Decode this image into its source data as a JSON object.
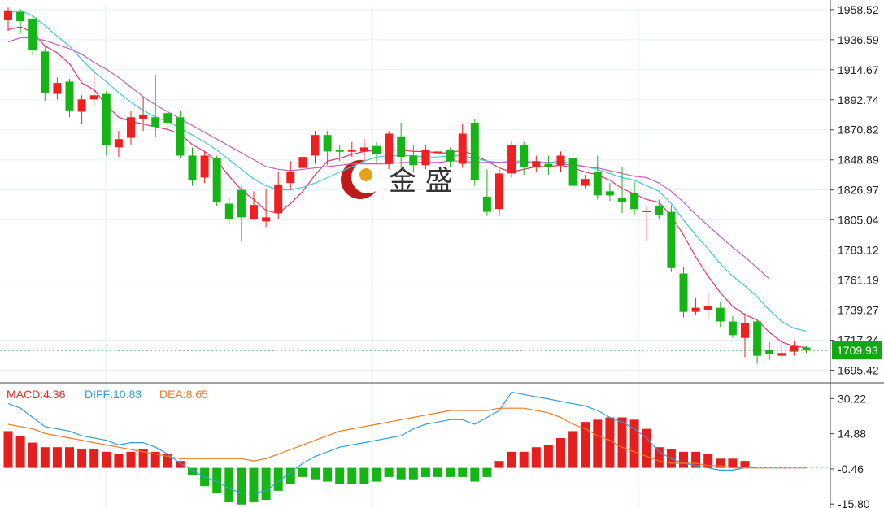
{
  "watermark": {
    "text": "金 盛"
  },
  "chart_data": [
    {
      "type": "candlestick",
      "title": "",
      "x_count": 66,
      "ylim": [
        1688,
        1962
      ],
      "y_ticks": [
        "1958.52",
        "1936.59",
        "1914.67",
        "1892.74",
        "1870.82",
        "1848.89",
        "1826.97",
        "1805.04",
        "1783.12",
        "1761.19",
        "1739.27",
        "1717.34",
        "1695.42"
      ],
      "last_price": {
        "label": "1709.93",
        "value": 1709.93
      },
      "up_color": "#f02020",
      "down_color": "#16b516",
      "candles": [
        [
          1951,
          1958,
          1943,
          1960
        ],
        [
          1957,
          1950,
          1941,
          1959
        ],
        [
          1952,
          1929,
          1925,
          1955
        ],
        [
          1928,
          1898,
          1892,
          1932
        ],
        [
          1897,
          1905,
          1893,
          1909
        ],
        [
          1906,
          1885,
          1880,
          1908
        ],
        [
          1884,
          1893,
          1875,
          1896
        ],
        [
          1893,
          1896,
          1888,
          1915
        ],
        [
          1897,
          1860,
          1852,
          1899
        ],
        [
          1858,
          1864,
          1851,
          1870
        ],
        [
          1865,
          1880,
          1860,
          1885
        ],
        [
          1879,
          1882,
          1870,
          1895
        ],
        [
          1880,
          1873,
          1866,
          1911
        ],
        [
          1883,
          1876,
          1870,
          1884
        ],
        [
          1880,
          1852,
          1850,
          1885
        ],
        [
          1852,
          1834,
          1830,
          1858
        ],
        [
          1836,
          1852,
          1832,
          1855
        ],
        [
          1850,
          1818,
          1815,
          1852
        ],
        [
          1817,
          1806,
          1802,
          1821
        ],
        [
          1827,
          1807,
          1790,
          1830
        ],
        [
          1806,
          1816,
          1805,
          1826
        ],
        [
          1804,
          1807,
          1800,
          1828
        ],
        [
          1810,
          1831,
          1806,
          1840
        ],
        [
          1832,
          1840,
          1828,
          1848
        ],
        [
          1843,
          1851,
          1838,
          1856
        ],
        [
          1852,
          1867,
          1846,
          1870
        ],
        [
          1867,
          1855,
          1845,
          1870
        ],
        [
          1856,
          1855,
          1848,
          1860
        ],
        [
          1855,
          1856,
          1851,
          1862
        ],
        [
          1855,
          1858,
          1848,
          1864
        ],
        [
          1859,
          1853,
          1847,
          1862
        ],
        [
          1846,
          1868,
          1842,
          1870
        ],
        [
          1866,
          1851,
          1843,
          1876
        ],
        [
          1852,
          1845,
          1840,
          1860
        ],
        [
          1845,
          1856,
          1842,
          1860
        ],
        [
          1855,
          1855,
          1850,
          1860
        ],
        [
          1856,
          1848,
          1844,
          1858
        ],
        [
          1846,
          1868,
          1843,
          1875
        ],
        [
          1876,
          1834,
          1830,
          1879
        ],
        [
          1822,
          1811,
          1808,
          1842
        ],
        [
          1813,
          1839,
          1808,
          1842
        ],
        [
          1839,
          1860,
          1836,
          1863
        ],
        [
          1860,
          1844,
          1838,
          1862
        ],
        [
          1844,
          1848,
          1840,
          1852
        ],
        [
          1846,
          1844,
          1838,
          1852
        ],
        [
          1845,
          1852,
          1840,
          1855
        ],
        [
          1850,
          1830,
          1827,
          1855
        ],
        [
          1830,
          1835,
          1828,
          1838
        ],
        [
          1840,
          1823,
          1820,
          1852
        ],
        [
          1826,
          1823,
          1819,
          1832
        ],
        [
          1821,
          1818,
          1810,
          1844
        ],
        [
          1825,
          1813,
          1809,
          1833
        ],
        [
          1811,
          1812,
          1790,
          1815
        ],
        [
          1815,
          1809,
          1806,
          1820
        ],
        [
          1811,
          1770,
          1767,
          1816
        ],
        [
          1766,
          1738,
          1734,
          1771
        ],
        [
          1738,
          1741,
          1736,
          1748
        ],
        [
          1739,
          1742,
          1733,
          1752
        ],
        [
          1741,
          1731,
          1727,
          1745
        ],
        [
          1731,
          1721,
          1719,
          1735
        ],
        [
          1719,
          1730,
          1705,
          1737
        ],
        [
          1731,
          1706,
          1700,
          1733
        ],
        [
          1710,
          1707,
          1703,
          1716
        ],
        [
          1706,
          1708,
          1704,
          1720
        ],
        [
          1709,
          1713,
          1706,
          1717
        ],
        [
          1712,
          1710,
          1708,
          1713
        ]
      ],
      "series": [
        {
          "color": "#e6336e",
          "values": [
            1944,
            1946,
            1942,
            1932,
            1927,
            1919,
            1905,
            1900,
            1889,
            1880,
            1877,
            1875,
            1873,
            1871,
            1868,
            1860,
            1855,
            1848,
            1837,
            1827,
            1820,
            1812,
            1810,
            1817,
            1826,
            1838,
            1848,
            1850,
            1853,
            1855,
            1856,
            1856,
            1856,
            1855,
            1855,
            1854,
            1854,
            1856,
            1852,
            1848,
            1843,
            1840,
            1842,
            1844,
            1844,
            1845,
            1843,
            1840,
            1838,
            1834,
            1828,
            1824,
            1820,
            1818,
            1808,
            1794,
            1778,
            1764,
            1752,
            1742,
            1736,
            1732,
            1723,
            1716,
            1713,
            1712
          ]
        },
        {
          "color": "#3ec8de",
          "values": [
            1956,
            1958,
            1954,
            1947,
            1939,
            1932,
            1922,
            1913,
            1906,
            1898,
            1891,
            1885,
            1880,
            1877,
            1872,
            1867,
            1862,
            1856,
            1849,
            1842,
            1835,
            1830,
            1827,
            1827,
            1829,
            1832,
            1836,
            1840,
            1844,
            1848,
            1851,
            1852,
            1852,
            1852,
            1851,
            1851,
            1852,
            1852,
            1850,
            1848,
            1847,
            1848,
            1848,
            1847,
            1847,
            1848,
            1846,
            1844,
            1842,
            1839,
            1836,
            1834,
            1830,
            1826,
            1817,
            1805,
            1794,
            1784,
            1773,
            1764,
            1757,
            1749,
            1739,
            1731,
            1726,
            1724
          ]
        },
        {
          "color": "#c85ec8",
          "values": [
            1935,
            1938,
            1938,
            1936,
            1933,
            1930,
            1926,
            1920,
            1915,
            1909,
            1902,
            1895,
            1889,
            1884,
            1879,
            1874,
            1869,
            1864,
            1859,
            1854,
            1849,
            1844,
            1842,
            1841,
            1842,
            1843,
            1844,
            1845,
            1846,
            1846,
            1846,
            1846,
            1847,
            1847,
            1847,
            1847,
            1848,
            1848,
            1847,
            1847,
            1847,
            1847,
            1847,
            1847,
            1847,
            1846,
            1845,
            1844,
            1843,
            1841,
            1839,
            1837,
            1836,
            1832,
            1826,
            1818,
            1809,
            1801,
            1793,
            1785,
            1778,
            1770,
            1762
          ]
        }
      ]
    },
    {
      "type": "bar+line",
      "title": "MACD",
      "ylim": [
        -17.5,
        36
      ],
      "y_ticks": [
        "30.22",
        "14.88",
        "-0.46",
        "-15.80"
      ],
      "legend": [
        {
          "label": "MACD:4.36",
          "color": "#e53030"
        },
        {
          "label": "DIFF:10.83",
          "color": "#2f9fde"
        },
        {
          "label": "DEA:8.65",
          "color": "#f07a20"
        }
      ],
      "bar_up_color": "#e51e1e",
      "bar_down_color": "#15b515",
      "histogram": [
        16,
        14,
        11,
        9,
        9,
        9,
        8,
        8,
        7,
        6,
        7,
        8,
        7,
        6,
        3,
        -3,
        -8,
        -11,
        -15,
        -16,
        -15,
        -14,
        -10,
        -7,
        -4,
        -5,
        -6,
        -7,
        -7,
        -7,
        -6,
        -4,
        -5,
        -5,
        -4,
        -4,
        -4,
        -4,
        -6,
        -4,
        3,
        7,
        7,
        9,
        10,
        13,
        16,
        20,
        21,
        22,
        22,
        21,
        17,
        9,
        8,
        7,
        7,
        6,
        4,
        4,
        3,
        0,
        0,
        0,
        0,
        0
      ],
      "diff": [
        28,
        26,
        22,
        18,
        17,
        16,
        14,
        13,
        12,
        10,
        11,
        11,
        9,
        6,
        2,
        -1,
        -4,
        -6,
        -9,
        -11,
        -11,
        -10,
        -6,
        -2,
        2,
        5,
        7,
        9,
        10,
        11,
        12,
        13,
        14,
        17,
        19,
        20,
        21,
        21,
        19,
        22,
        25,
        33,
        32,
        31,
        30,
        29,
        28,
        27,
        25,
        22,
        20,
        17,
        13,
        7,
        4,
        2,
        1,
        0,
        -1,
        -1,
        0,
        0,
        0,
        0,
        0,
        0
      ],
      "dea": [
        19,
        18,
        17,
        15,
        14,
        13,
        12,
        11,
        10,
        9,
        8,
        7,
        6,
        5,
        4,
        4,
        4,
        4,
        4,
        4,
        3,
        4,
        6,
        8,
        10,
        12,
        14,
        16,
        17,
        18,
        19,
        20,
        21,
        22,
        23,
        24,
        25,
        25,
        25,
        25,
        26,
        26,
        26,
        25,
        24,
        22,
        19,
        17,
        14,
        12,
        9,
        7,
        5,
        3,
        2,
        2,
        2,
        1,
        1,
        0,
        0,
        0,
        0,
        0,
        0,
        0
      ]
    }
  ]
}
